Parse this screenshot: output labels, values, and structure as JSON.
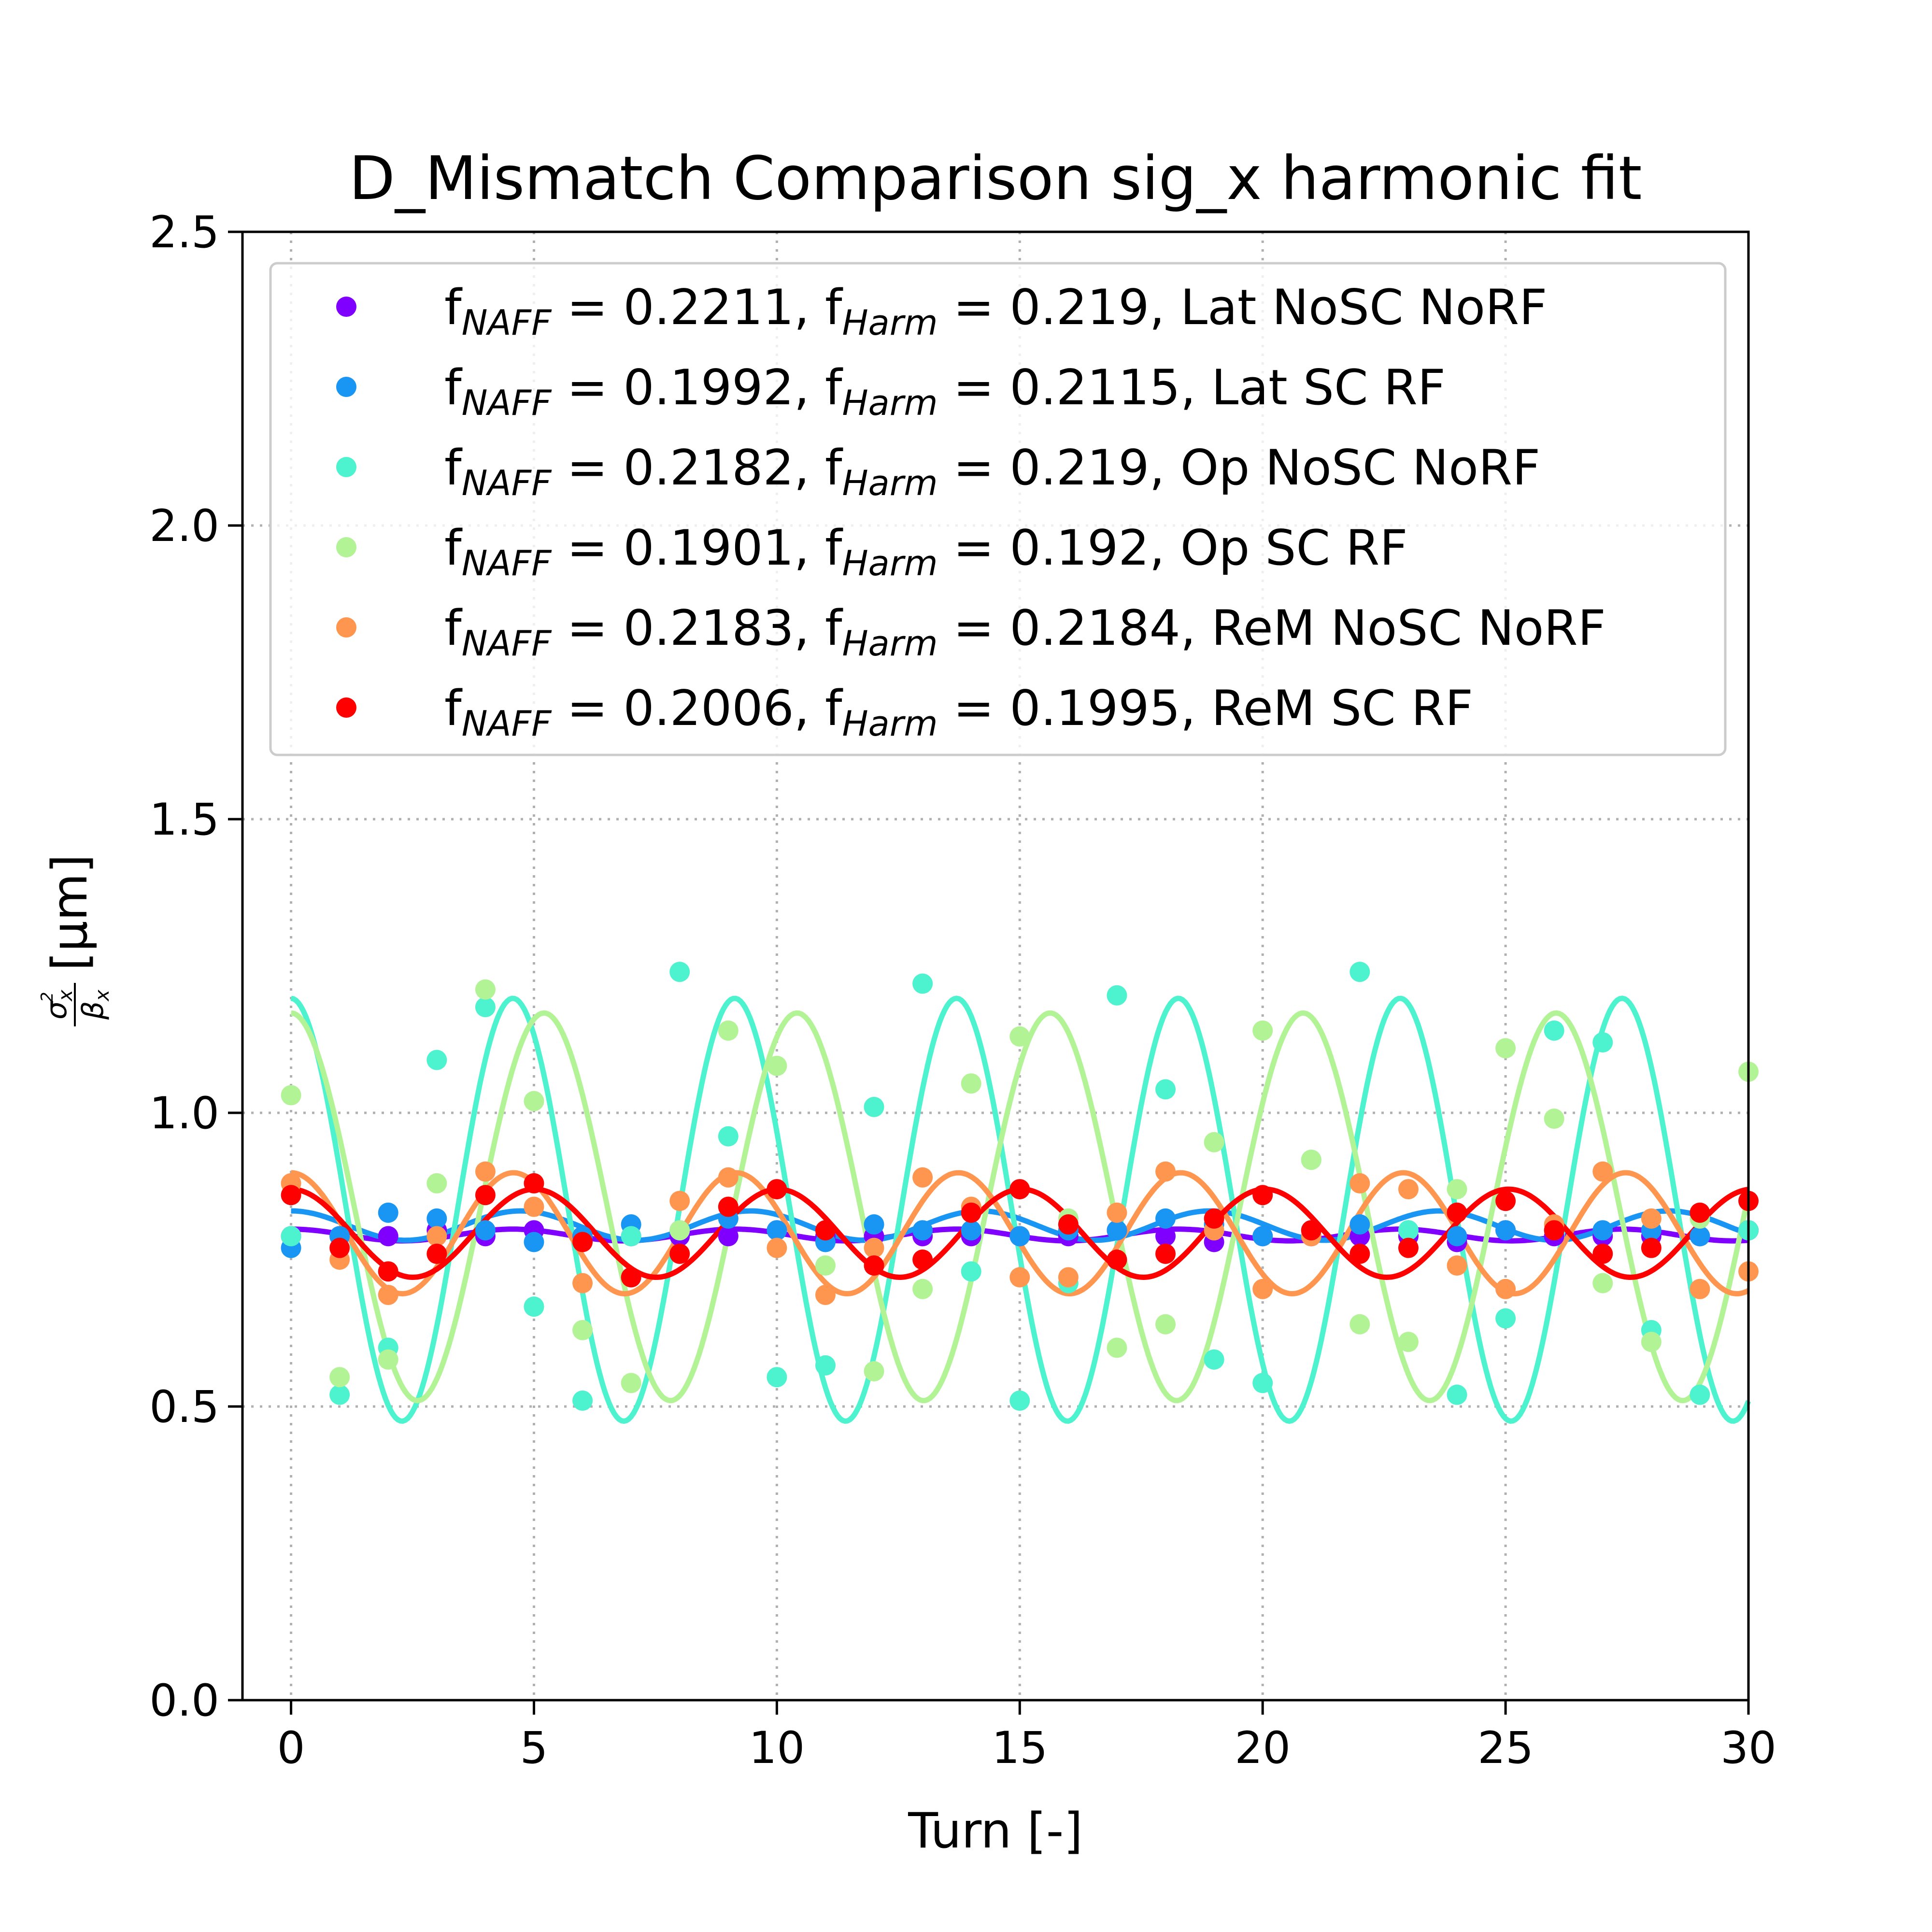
{
  "chart_data": {
    "type": "scatter",
    "title": "D_Mismatch Comparison sig_x harmonic fit",
    "xlabel": "Turn [-]",
    "ylabel": {
      "numerator": "σ",
      "numerator_sup": "2",
      "numerator_sub": "x",
      "denominator": "β",
      "denominator_sub": "x",
      "unit": "[μm]"
    },
    "xlim": [
      -1,
      30
    ],
    "ylim": [
      0,
      2.5
    ],
    "xticks": [
      "0",
      "5",
      "10",
      "15",
      "20",
      "25",
      "30"
    ],
    "yticks": [
      "0.0",
      "0.5",
      "1.0",
      "1.5",
      "2.0",
      "2.5"
    ],
    "grid": true,
    "legend_position": "upper center",
    "legend_text": {
      "f": "f",
      "naff_sub": "NAFF",
      "harm_sub": "Harm",
      "eq": " = "
    },
    "series": [
      {
        "name": "Lat NoSC NoRF",
        "f_naff": "0.2211",
        "f_harm": "0.219",
        "color": "#8000ff",
        "x": [
          0,
          1,
          2,
          3,
          4,
          5,
          6,
          7,
          8,
          9,
          10,
          11,
          12,
          13,
          14,
          15,
          16,
          17,
          18,
          19,
          20,
          21,
          22,
          23,
          24,
          25,
          26,
          27,
          28,
          29,
          30
        ],
        "y": [
          0.79,
          0.79,
          0.79,
          0.8,
          0.79,
          0.8,
          0.79,
          0.79,
          0.79,
          0.79,
          0.8,
          0.79,
          0.79,
          0.79,
          0.79,
          0.79,
          0.79,
          0.8,
          0.79,
          0.78,
          0.79,
          0.79,
          0.79,
          0.79,
          0.78,
          0.8,
          0.79,
          0.79,
          0.79,
          0.79,
          0.8
        ],
        "fit": {
          "mean": 0.792,
          "amp": 0.01,
          "freq": 0.219,
          "phase": 0.0
        }
      },
      {
        "name": "Lat SC RF",
        "f_naff": "0.1992",
        "f_harm": "0.2115",
        "color": "#1996f3",
        "x": [
          0,
          1,
          2,
          3,
          4,
          5,
          6,
          7,
          8,
          9,
          10,
          11,
          12,
          13,
          14,
          15,
          16,
          17,
          18,
          19,
          20,
          21,
          22,
          23,
          24,
          25,
          26,
          27,
          28,
          29,
          30
        ],
        "y": [
          0.77,
          0.79,
          0.83,
          0.82,
          0.8,
          0.78,
          0.79,
          0.81,
          0.8,
          0.82,
          0.8,
          0.78,
          0.81,
          0.8,
          0.8,
          0.79,
          0.8,
          0.8,
          0.82,
          0.81,
          0.79,
          0.8,
          0.81,
          0.8,
          0.79,
          0.8,
          0.8,
          0.8,
          0.8,
          0.79,
          0.8
        ],
        "fit": {
          "mean": 0.808,
          "amp": 0.025,
          "freq": 0.2115,
          "phase": 0.0
        }
      },
      {
        "name": "Op NoSC NoRF",
        "f_naff": "0.2182",
        "f_harm": "0.219",
        "color": "#4df3ce",
        "x": [
          0,
          1,
          2,
          3,
          4,
          5,
          6,
          7,
          8,
          9,
          10,
          11,
          12,
          13,
          14,
          15,
          16,
          17,
          18,
          19,
          20,
          21,
          22,
          23,
          24,
          25,
          26,
          27,
          28,
          29,
          30
        ],
        "y": [
          0.79,
          0.52,
          0.6,
          1.09,
          1.18,
          0.67,
          0.51,
          0.79,
          1.24,
          0.96,
          0.55,
          0.57,
          1.01,
          1.22,
          0.73,
          0.51,
          0.71,
          1.2,
          1.04,
          0.58,
          0.54,
          0.92,
          1.24,
          0.8,
          0.52,
          0.65,
          1.14,
          1.12,
          0.63,
          0.52,
          0.8
        ],
        "fit": {
          "mean": 0.835,
          "amp": 0.36,
          "freq": 0.219,
          "phase": 0.0
        }
      },
      {
        "name": "Op SC RF",
        "f_naff": "0.1901",
        "f_harm": "0.192",
        "color": "#b2f396",
        "x": [
          0,
          1,
          2,
          3,
          4,
          5,
          6,
          7,
          8,
          9,
          10,
          11,
          12,
          13,
          14,
          15,
          16,
          17,
          18,
          19,
          20,
          21,
          22,
          23,
          24,
          25,
          26,
          27,
          28,
          29,
          30
        ],
        "y": [
          1.03,
          0.55,
          0.58,
          0.88,
          1.21,
          1.02,
          0.63,
          0.54,
          0.8,
          1.14,
          1.08,
          0.74,
          0.56,
          0.7,
          1.05,
          1.13,
          0.82,
          0.6,
          0.64,
          0.95,
          1.14,
          0.92,
          0.64,
          0.61,
          0.87,
          1.11,
          0.99,
          0.71,
          0.61,
          0.82,
          1.07
        ],
        "fit": {
          "mean": 0.84,
          "amp": 0.33,
          "freq": 0.192,
          "phase": 0.0
        }
      },
      {
        "name": "ReM NoSC NoRF",
        "f_naff": "0.2183",
        "f_harm": "0.2184",
        "color": "#ff9650",
        "x": [
          0,
          1,
          2,
          3,
          4,
          5,
          6,
          7,
          8,
          9,
          10,
          11,
          12,
          13,
          14,
          15,
          16,
          17,
          18,
          19,
          20,
          21,
          22,
          23,
          24,
          25,
          26,
          27,
          28,
          29,
          30
        ],
        "y": [
          0.88,
          0.75,
          0.69,
          0.79,
          0.9,
          0.84,
          0.71,
          0.72,
          0.85,
          0.89,
          0.77,
          0.69,
          0.77,
          0.89,
          0.84,
          0.72,
          0.72,
          0.83,
          0.9,
          0.8,
          0.7,
          0.79,
          0.88,
          0.87,
          0.74,
          0.7,
          0.81,
          0.9,
          0.82,
          0.7,
          0.73
        ],
        "fit": {
          "mean": 0.795,
          "amp": 0.103,
          "freq": 0.2184,
          "phase": 0.0
        }
      },
      {
        "name": "ReM SC RF",
        "f_naff": "0.2006",
        "f_harm": "0.1995",
        "color": "#ff0000",
        "x": [
          0,
          1,
          2,
          3,
          4,
          5,
          6,
          7,
          8,
          9,
          10,
          11,
          12,
          13,
          14,
          15,
          16,
          17,
          18,
          19,
          20,
          21,
          22,
          23,
          24,
          25,
          26,
          27,
          28,
          29,
          30
        ],
        "y": [
          0.86,
          0.77,
          0.73,
          0.76,
          0.86,
          0.88,
          0.78,
          0.72,
          0.76,
          0.84,
          0.87,
          0.8,
          0.74,
          0.75,
          0.83,
          0.87,
          0.81,
          0.75,
          0.76,
          0.82,
          0.86,
          0.8,
          0.76,
          0.77,
          0.83,
          0.85,
          0.8,
          0.76,
          0.77,
          0.83,
          0.85
        ],
        "fit": {
          "mean": 0.795,
          "amp": 0.075,
          "freq": 0.1995,
          "phase": 0.0
        }
      }
    ]
  }
}
